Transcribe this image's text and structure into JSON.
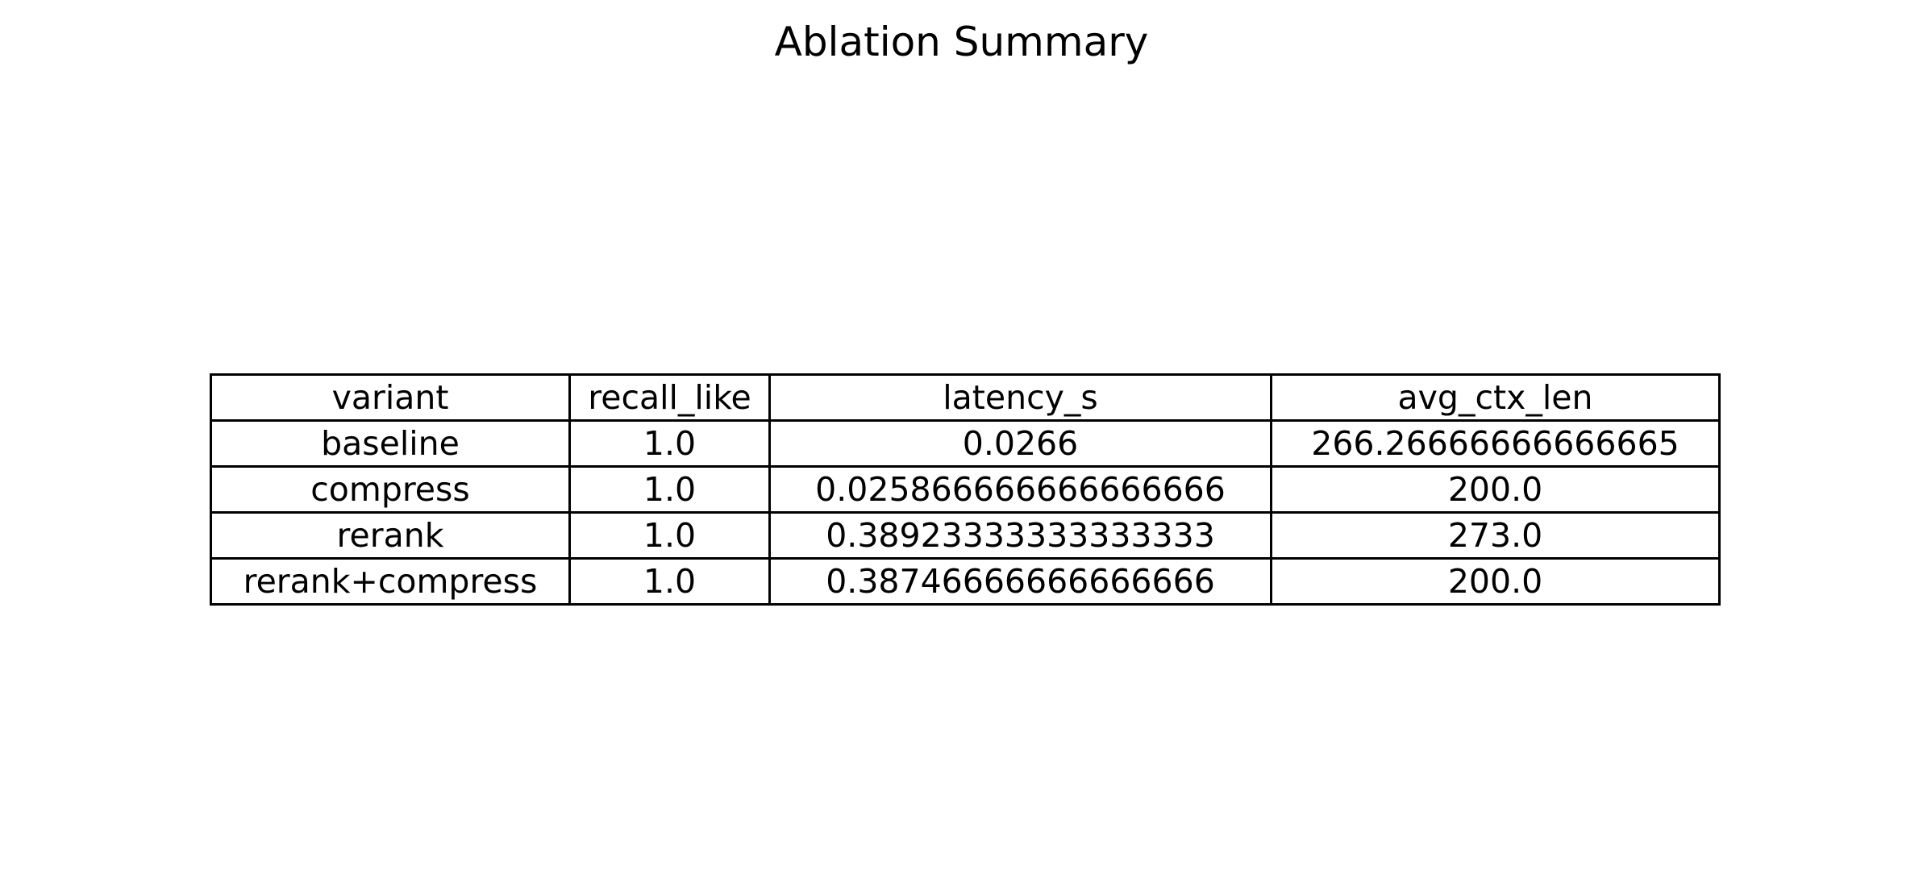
{
  "chart_data": {
    "type": "table",
    "title": "Ablation Summary",
    "columns": [
      "variant",
      "recall_like",
      "latency_s",
      "avg_ctx_len"
    ],
    "rows": [
      [
        "baseline",
        "1.0",
        "0.0266",
        "266.26666666666665"
      ],
      [
        "compress",
        "1.0",
        "0.025866666666666666",
        "200.0"
      ],
      [
        "rerank",
        "1.0",
        "0.38923333333333333",
        "273.0"
      ],
      [
        "rerank+compress",
        "1.0",
        "0.38746666666666666",
        "200.0"
      ]
    ],
    "grid": true
  }
}
